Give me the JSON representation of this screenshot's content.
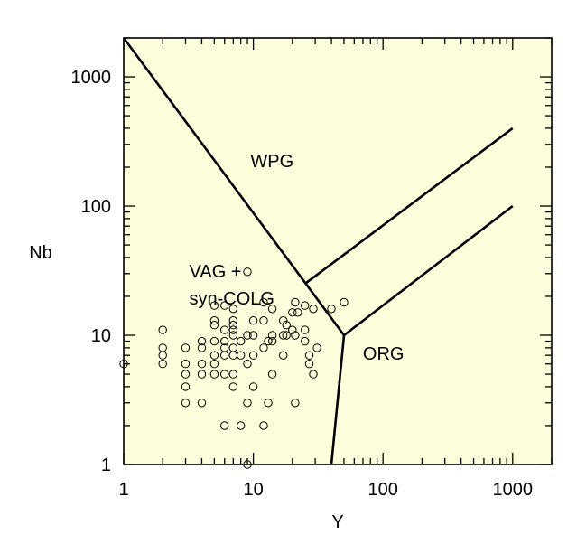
{
  "chart_data": {
    "type": "scatter",
    "xscale": "log",
    "yscale": "log",
    "xlim": [
      1,
      2000
    ],
    "ylim": [
      1,
      2000
    ],
    "xlabel": "Y",
    "ylabel": "Nb",
    "x_ticks": [
      1,
      10,
      100,
      1000
    ],
    "x_tick_labels": [
      "1",
      "10",
      "100",
      "1000"
    ],
    "y_ticks": [
      1,
      10,
      100,
      1000
    ],
    "y_tick_labels": [
      "1",
      "10",
      "100",
      "1000"
    ],
    "region_labels": [
      {
        "lines": [
          "WPG"
        ],
        "x": 9.5,
        "y": 200
      },
      {
        "lines": [
          "VAG +",
          "syn-COLG"
        ],
        "x": 3.2,
        "y": 28
      },
      {
        "lines": [
          "ORG"
        ],
        "x": 70,
        "y": 6.5
      }
    ],
    "boundaries": [
      {
        "name": "VAG-WPG",
        "points": [
          [
            1,
            2000
          ],
          [
            50,
            10
          ]
        ]
      },
      {
        "name": "VAG-ORG",
        "points": [
          [
            50,
            10
          ],
          [
            40,
            1
          ]
        ]
      },
      {
        "name": "WPG-ORG",
        "points": [
          [
            50,
            10
          ],
          [
            1000,
            100
          ]
        ]
      },
      {
        "name": "within-plate upper",
        "points": [
          [
            25,
            25
          ],
          [
            1000,
            400
          ]
        ]
      }
    ],
    "background_color": "#fefedc",
    "points": [
      [
        1,
        6
      ],
      [
        2,
        11
      ],
      [
        2,
        8
      ],
      [
        2,
        7
      ],
      [
        2,
        6
      ],
      [
        3,
        8
      ],
      [
        3,
        6
      ],
      [
        3,
        5
      ],
      [
        3,
        4
      ],
      [
        3,
        3
      ],
      [
        4,
        9
      ],
      [
        4,
        8
      ],
      [
        4,
        6
      ],
      [
        4,
        5
      ],
      [
        4,
        3
      ],
      [
        5,
        17
      ],
      [
        5,
        13
      ],
      [
        5,
        12
      ],
      [
        5,
        9
      ],
      [
        5,
        7
      ],
      [
        5,
        6
      ],
      [
        5,
        5
      ],
      [
        6,
        17
      ],
      [
        6,
        11
      ],
      [
        6,
        9
      ],
      [
        6,
        8
      ],
      [
        6,
        7
      ],
      [
        6,
        5
      ],
      [
        6,
        2
      ],
      [
        7,
        16
      ],
      [
        7,
        13
      ],
      [
        7,
        12
      ],
      [
        7,
        11
      ],
      [
        7,
        10
      ],
      [
        7,
        8
      ],
      [
        7,
        7
      ],
      [
        7,
        5
      ],
      [
        7,
        4
      ],
      [
        8,
        9
      ],
      [
        8,
        7
      ],
      [
        8,
        2
      ],
      [
        9,
        31
      ],
      [
        9,
        10
      ],
      [
        9,
        6
      ],
      [
        9,
        3
      ],
      [
        9,
        1
      ],
      [
        10,
        13
      ],
      [
        10,
        10
      ],
      [
        10,
        7
      ],
      [
        10,
        4
      ],
      [
        12,
        18
      ],
      [
        12,
        13
      ],
      [
        12,
        8
      ],
      [
        12,
        2
      ],
      [
        13,
        9
      ],
      [
        13,
        3
      ],
      [
        14,
        16
      ],
      [
        14,
        10
      ],
      [
        14,
        9
      ],
      [
        14,
        5
      ],
      [
        17,
        13
      ],
      [
        17,
        10
      ],
      [
        17,
        7
      ],
      [
        18,
        12
      ],
      [
        18,
        10
      ],
      [
        20,
        15
      ],
      [
        20,
        11
      ],
      [
        21,
        18
      ],
      [
        21,
        10
      ],
      [
        21,
        3
      ],
      [
        22,
        15
      ],
      [
        25,
        17
      ],
      [
        25,
        11
      ],
      [
        25,
        9
      ],
      [
        27,
        7
      ],
      [
        27,
        6
      ],
      [
        29,
        16
      ],
      [
        29,
        5
      ],
      [
        31,
        8
      ],
      [
        40,
        16
      ],
      [
        50,
        18
      ]
    ]
  }
}
